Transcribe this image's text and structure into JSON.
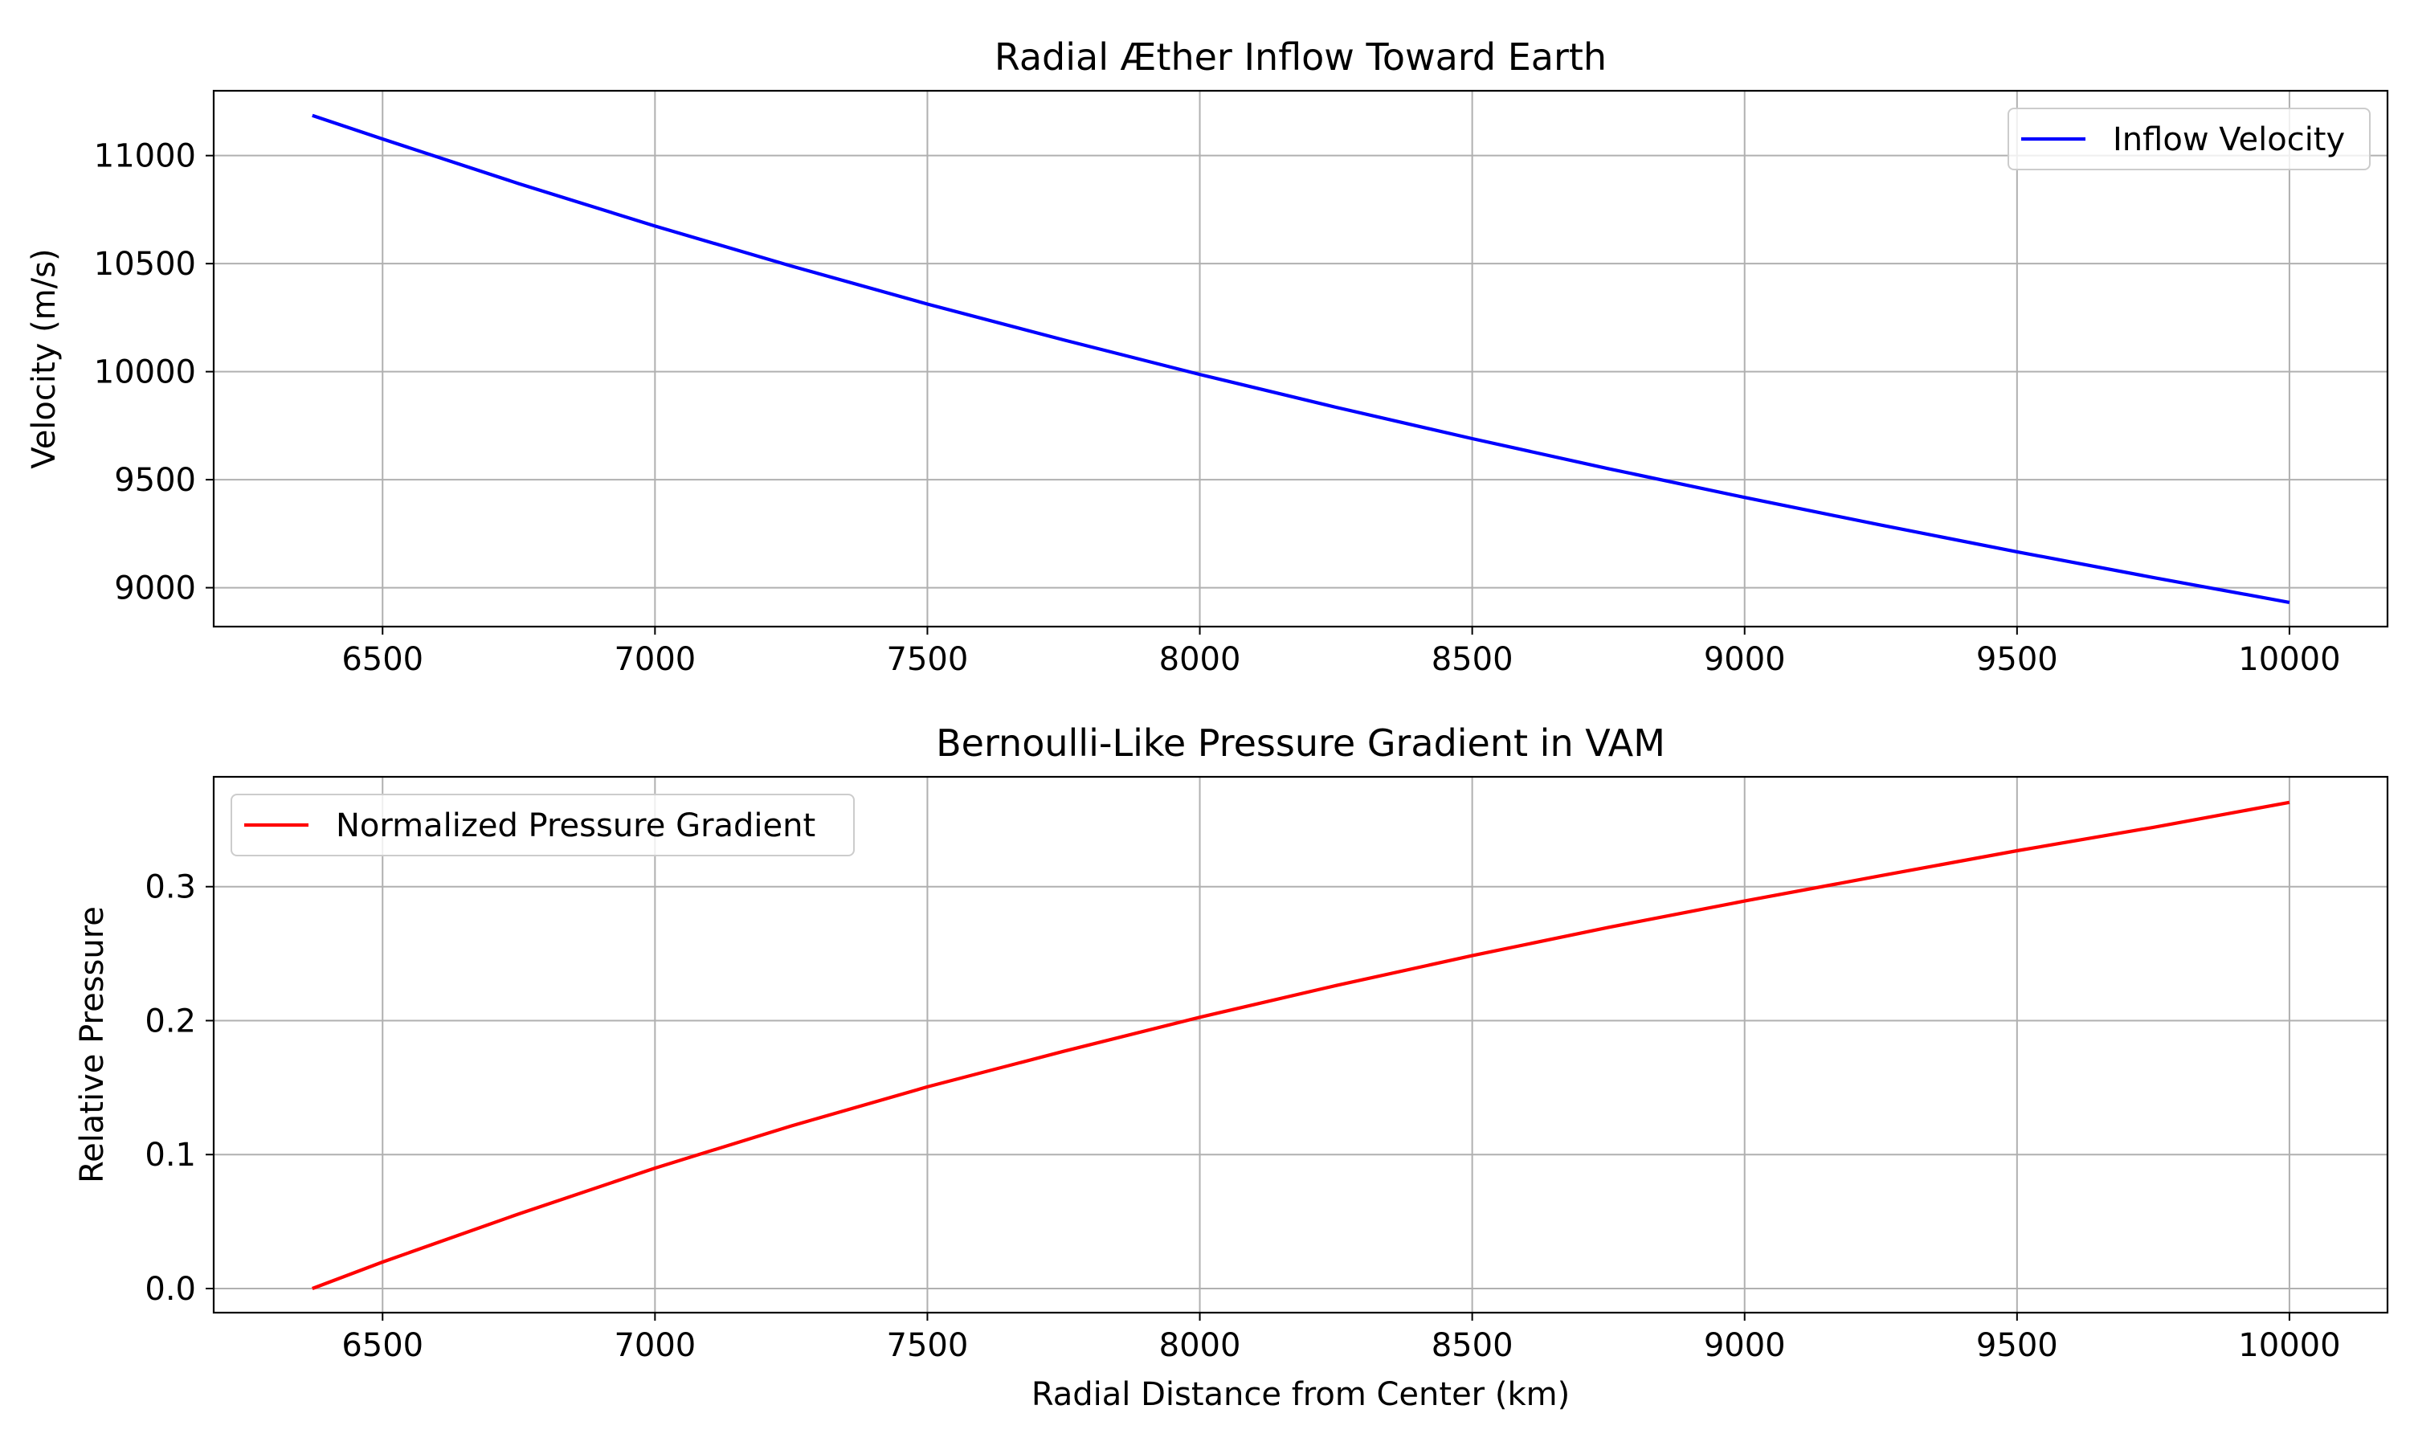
{
  "chart_data": [
    {
      "type": "line",
      "title": "Radial Æther Inflow Toward Earth",
      "xlabel": "",
      "ylabel": "Velocity (m/s)",
      "xlim": [
        6190,
        10180
      ],
      "ylim": [
        8820,
        11300
      ],
      "xticks": [
        6500,
        7000,
        7500,
        8000,
        8500,
        9000,
        9500,
        10000
      ],
      "xtick_labels": [
        "6500",
        "7000",
        "7500",
        "8000",
        "8500",
        "9000",
        "9500",
        "10000"
      ],
      "yticks": [
        9000,
        9500,
        10000,
        10500,
        11000
      ],
      "ytick_labels": [
        "9000",
        "9500",
        "10000",
        "10500",
        "11000"
      ],
      "grid": true,
      "legend_position": "upper right",
      "series": [
        {
          "name": "Inflow Velocity",
          "color": "#0000ff",
          "x": [
            6371,
            6500,
            6750,
            7000,
            7250,
            7500,
            7750,
            8000,
            8250,
            8500,
            8750,
            9000,
            9250,
            9500,
            9750,
            10000
          ],
          "y": [
            11186,
            11077,
            10870,
            10674,
            10489,
            10313,
            10147,
            9987,
            9835,
            9690,
            9551,
            9418,
            9290,
            9166,
            9047,
            8932
          ]
        }
      ]
    },
    {
      "type": "line",
      "title": "Bernoulli-Like Pressure Gradient in VAM",
      "xlabel": "Radial Distance from Center (km)",
      "ylabel": "Relative Pressure",
      "xlim": [
        6190,
        10180
      ],
      "ylim": [
        -0.018,
        0.382
      ],
      "xticks": [
        6500,
        7000,
        7500,
        8000,
        8500,
        9000,
        9500,
        10000
      ],
      "xtick_labels": [
        "6500",
        "7000",
        "7500",
        "8000",
        "8500",
        "9000",
        "9500",
        "10000"
      ],
      "yticks": [
        0.0,
        0.1,
        0.2,
        0.3
      ],
      "ytick_labels": [
        "0.0",
        "0.1",
        "0.2",
        "0.3"
      ],
      "grid": true,
      "legend_position": "upper left",
      "series": [
        {
          "name": "Normalized Pressure Gradient",
          "color": "#ff0000",
          "x": [
            6371,
            6500,
            6750,
            7000,
            7250,
            7500,
            7750,
            8000,
            8250,
            8500,
            8750,
            9000,
            9250,
            9500,
            9750,
            10000
          ],
          "y": [
            0.0,
            0.0198,
            0.0557,
            0.0899,
            0.1214,
            0.1506,
            0.1771,
            0.2025,
            0.2262,
            0.2485,
            0.2696,
            0.2893,
            0.3082,
            0.3268,
            0.3443,
            0.3629
          ]
        }
      ]
    }
  ]
}
